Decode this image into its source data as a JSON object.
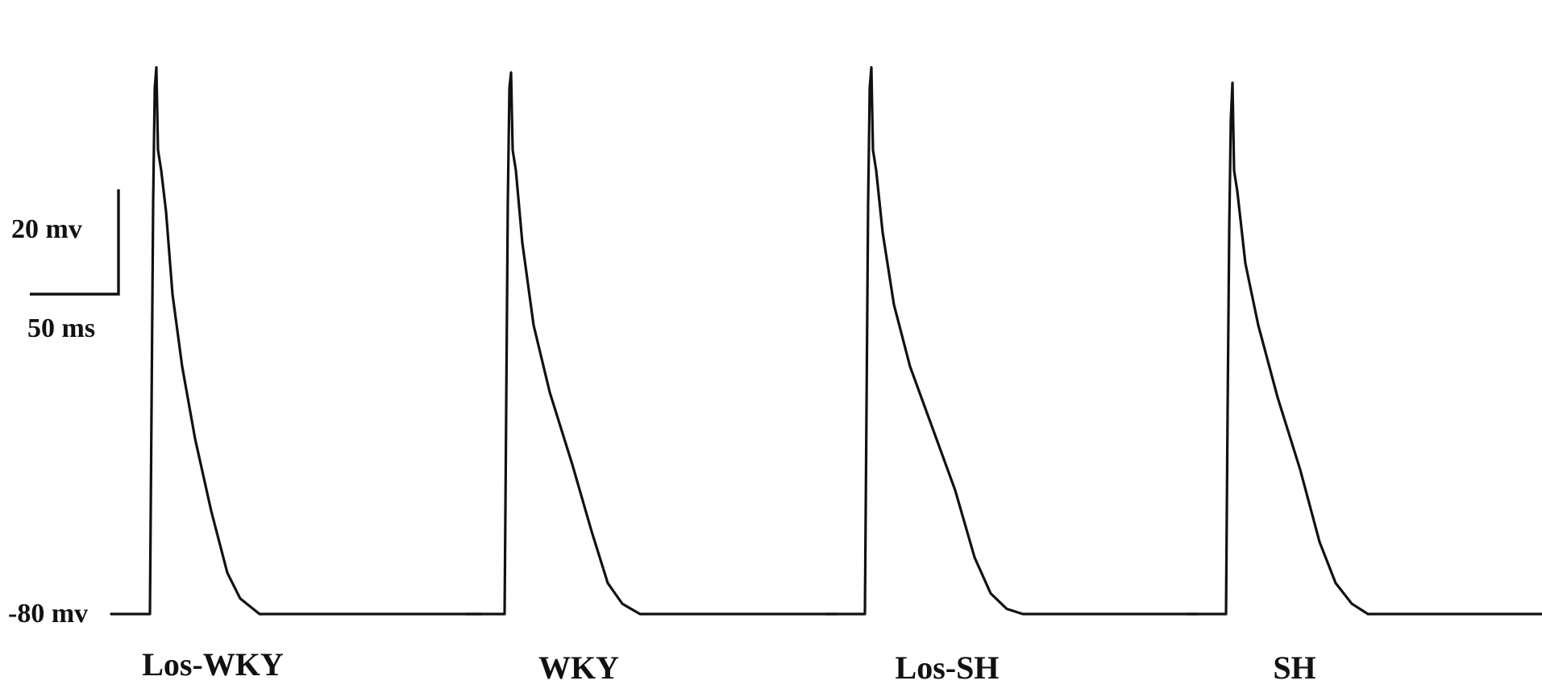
{
  "chart_data": {
    "type": "line",
    "title": "",
    "xlabel": "",
    "ylabel": "",
    "baseline_label": "-80 mv",
    "resting_potential_mv": -80,
    "scale_bar": {
      "voltage_label": "20 mv",
      "time_label": "50 ms",
      "voltage_mv": 20,
      "time_ms": 50
    },
    "ylim": [
      -85,
      30
    ],
    "time_window_ms": [
      0,
      230
    ],
    "series": [
      {
        "name": "Los-WKY",
        "points_ms_mv": [
          [
            0,
            -80
          ],
          [
            24,
            -80
          ],
          [
            25,
            -40
          ],
          [
            26,
            0
          ],
          [
            27,
            22
          ],
          [
            28,
            26
          ],
          [
            29,
            10
          ],
          [
            31,
            6
          ],
          [
            34,
            -2
          ],
          [
            38,
            -18
          ],
          [
            44,
            -32
          ],
          [
            52,
            -46
          ],
          [
            62,
            -60
          ],
          [
            72,
            -72
          ],
          [
            80,
            -77
          ],
          [
            92,
            -80
          ],
          [
            230,
            -80
          ]
        ]
      },
      {
        "name": "WKY",
        "points_ms_mv": [
          [
            0,
            -80
          ],
          [
            24,
            -80
          ],
          [
            25,
            -40
          ],
          [
            26,
            0
          ],
          [
            27,
            22
          ],
          [
            28,
            25
          ],
          [
            29,
            10
          ],
          [
            31,
            6
          ],
          [
            35,
            -8
          ],
          [
            42,
            -24
          ],
          [
            52,
            -37
          ],
          [
            66,
            -51
          ],
          [
            78,
            -64
          ],
          [
            88,
            -74
          ],
          [
            97,
            -78
          ],
          [
            108,
            -80
          ],
          [
            230,
            -80
          ]
        ]
      },
      {
        "name": "Los-SH",
        "points_ms_mv": [
          [
            0,
            -80
          ],
          [
            24,
            -80
          ],
          [
            25,
            -40
          ],
          [
            26,
            0
          ],
          [
            27,
            22
          ],
          [
            28,
            26
          ],
          [
            29,
            10
          ],
          [
            31,
            6
          ],
          [
            35,
            -6
          ],
          [
            42,
            -20
          ],
          [
            52,
            -32
          ],
          [
            66,
            -44
          ],
          [
            80,
            -56
          ],
          [
            92,
            -69
          ],
          [
            102,
            -76
          ],
          [
            112,
            -79
          ],
          [
            122,
            -80
          ],
          [
            230,
            -80
          ]
        ]
      },
      {
        "name": "SH",
        "points_ms_mv": [
          [
            0,
            -80
          ],
          [
            24,
            -80
          ],
          [
            25,
            -40
          ],
          [
            26,
            -5
          ],
          [
            27,
            16
          ],
          [
            28,
            23
          ],
          [
            29,
            6
          ],
          [
            31,
            2
          ],
          [
            36,
            -12
          ],
          [
            44,
            -24
          ],
          [
            56,
            -38
          ],
          [
            70,
            -52
          ],
          [
            82,
            -66
          ],
          [
            92,
            -74
          ],
          [
            102,
            -78
          ],
          [
            112,
            -80
          ],
          [
            230,
            -80
          ]
        ]
      }
    ]
  }
}
